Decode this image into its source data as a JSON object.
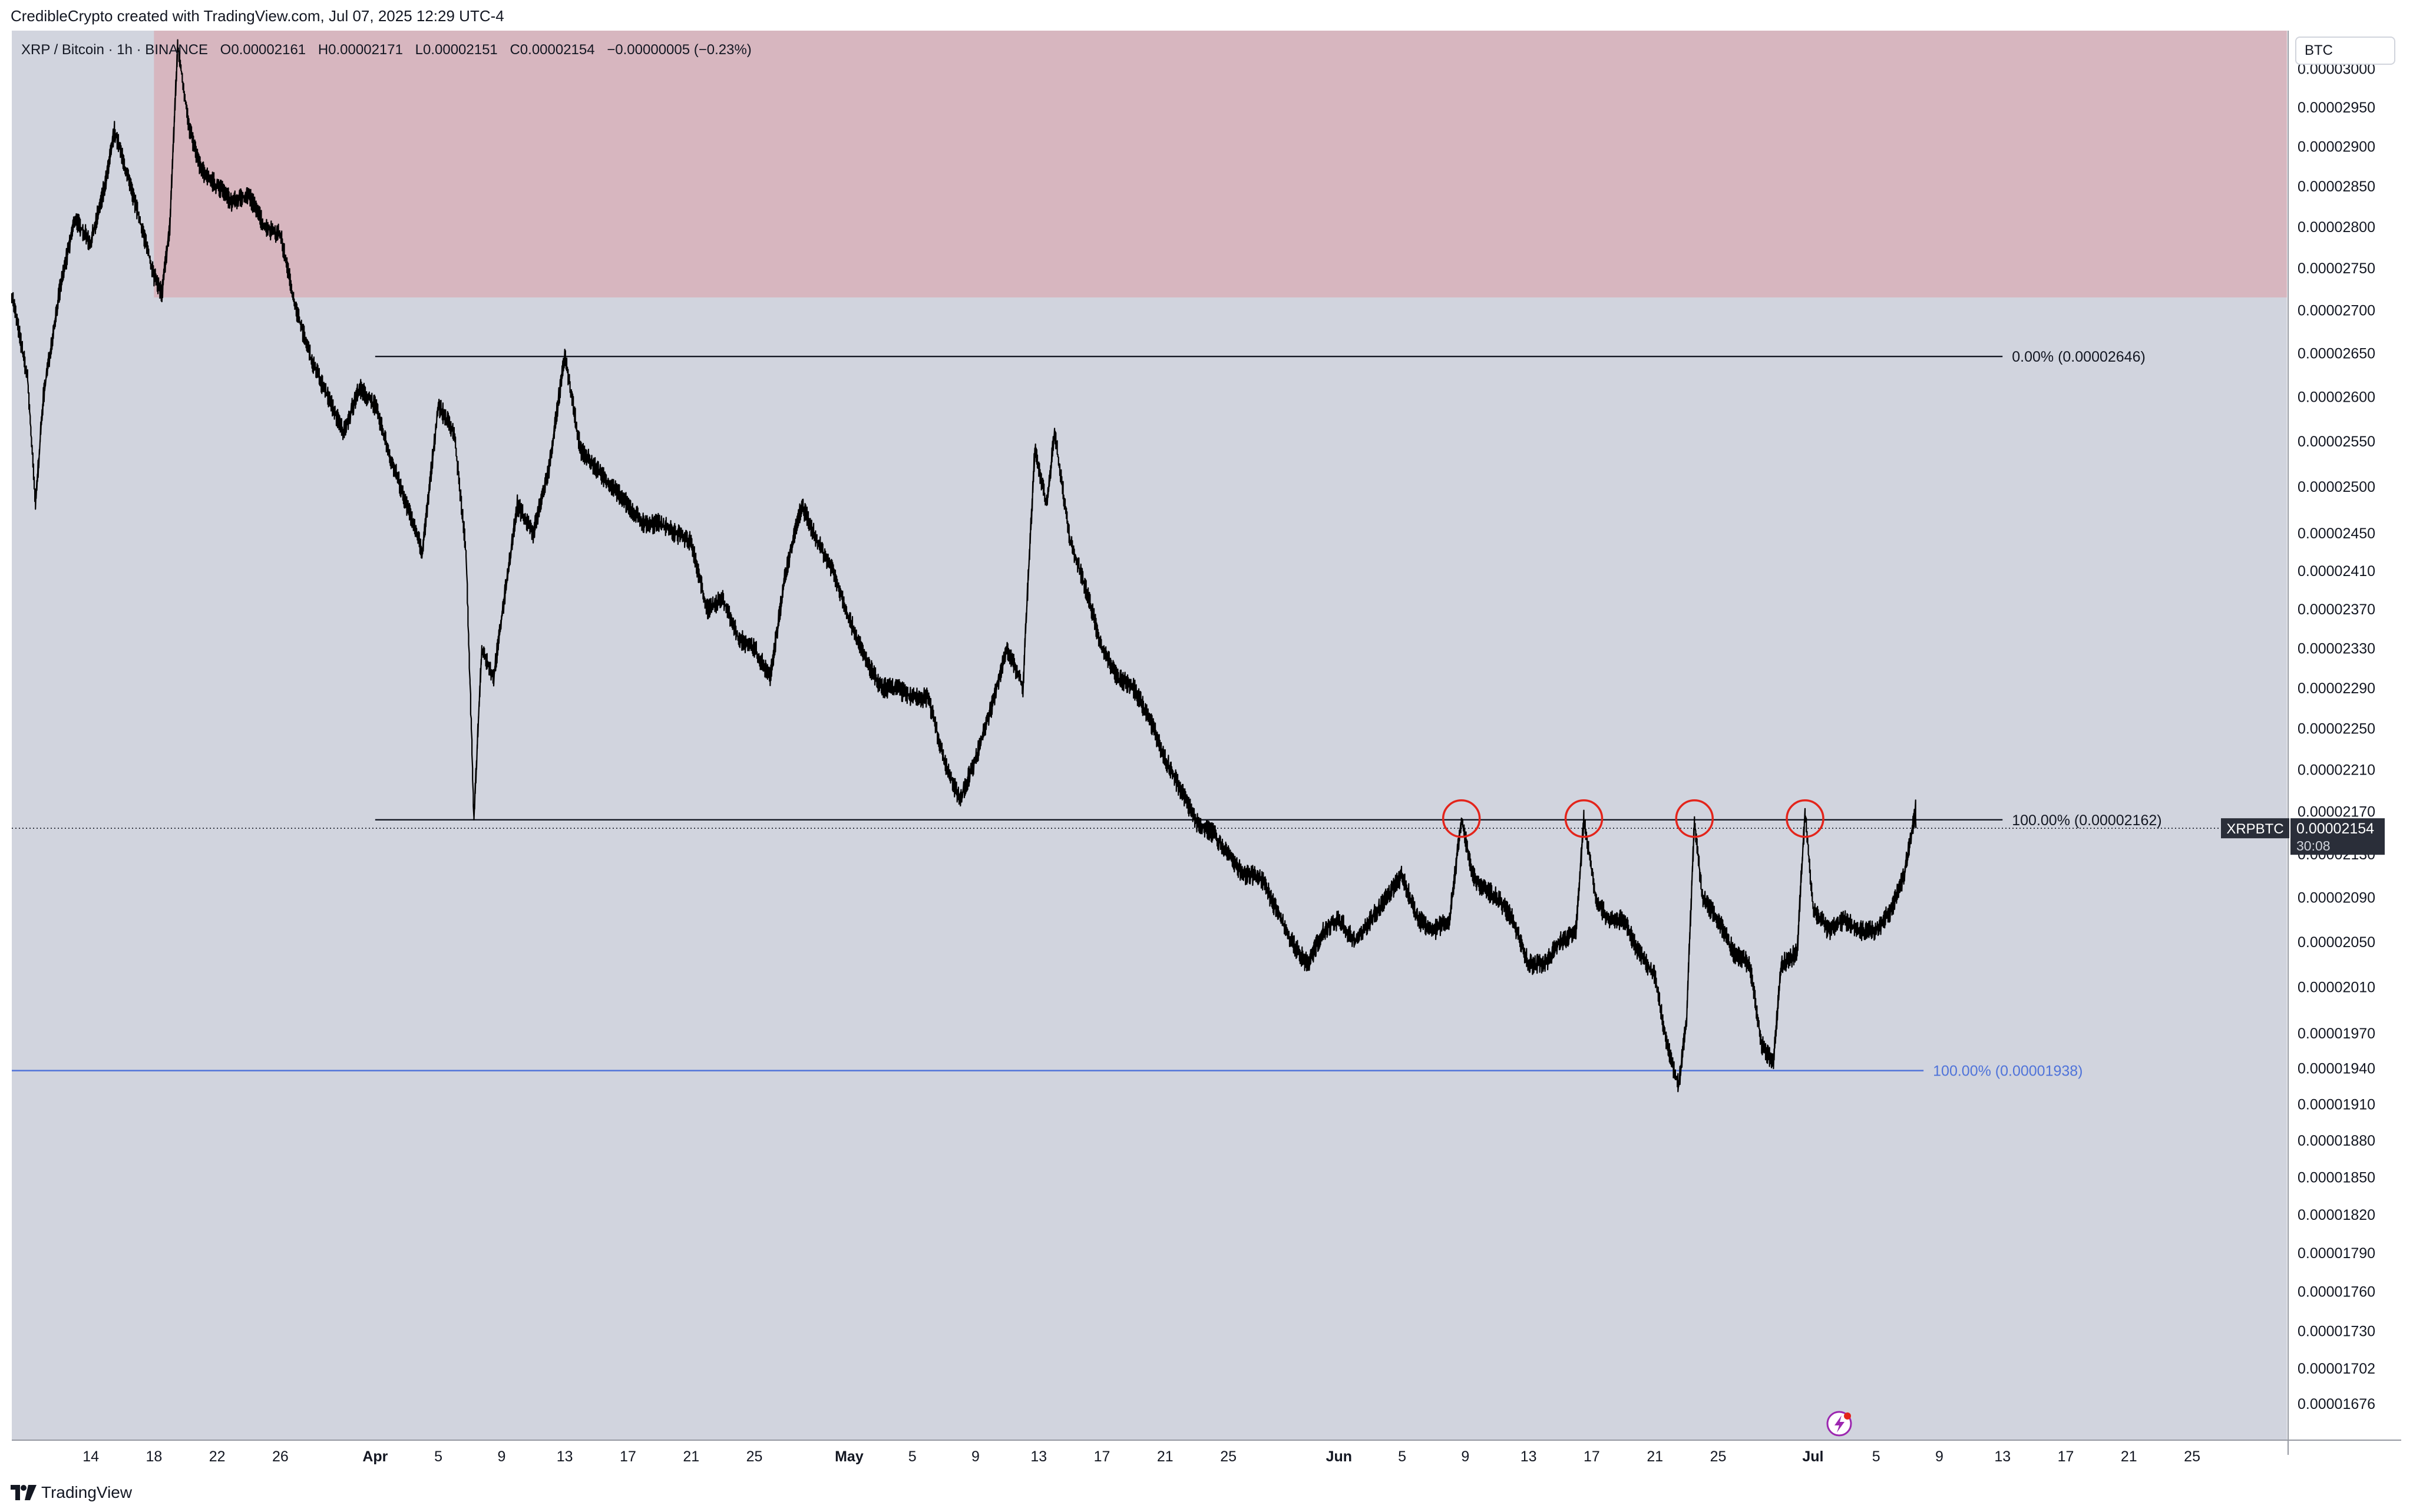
{
  "caption": "CredibleCrypto created with TradingView.com, Jul 07, 2025 12:29 UTC-4",
  "brand": "TradingView",
  "currency_label": "BTC",
  "legend": {
    "symbol": "XRP / Bitcoin · 1h · BINANCE",
    "o_label": "O",
    "o_value": "0.00002161",
    "h_label": "H",
    "h_value": "0.00002171",
    "l_label": "L",
    "l_value": "0.00002151",
    "c_label": "C",
    "c_value": "0.00002154",
    "change": "−0.00000005 (−0.23%)"
  },
  "last_price": {
    "ticker": "XRPBTC",
    "value": "0.00002154",
    "countdown": "30:08"
  },
  "colors": {
    "background": "#d1d4de",
    "supply_zone": "#d7b6bf",
    "candles": "#000000",
    "fib_line": "#131722",
    "blue_fib": "#4f73d9",
    "circles": "#e3241b"
  },
  "chart_data": {
    "type": "line",
    "series_type": "candlestick (1h)",
    "x_unit": "date (2025)",
    "y_unit": "BTC",
    "y_scale": "log",
    "y_range": [
      1.65e-05,
      3.05e-05
    ],
    "y_ticks": [
      {
        "value": 3e-05,
        "label": "0.00003000"
      },
      {
        "value": 2.95e-05,
        "label": "0.00002950"
      },
      {
        "value": 2.9e-05,
        "label": "0.00002900"
      },
      {
        "value": 2.85e-05,
        "label": "0.00002850"
      },
      {
        "value": 2.8e-05,
        "label": "0.00002800"
      },
      {
        "value": 2.75e-05,
        "label": "0.00002750"
      },
      {
        "value": 2.7e-05,
        "label": "0.00002700"
      },
      {
        "value": 2.65e-05,
        "label": "0.00002650"
      },
      {
        "value": 2.6e-05,
        "label": "0.00002600"
      },
      {
        "value": 2.55e-05,
        "label": "0.00002550"
      },
      {
        "value": 2.5e-05,
        "label": "0.00002500"
      },
      {
        "value": 2.45e-05,
        "label": "0.00002450"
      },
      {
        "value": 2.41e-05,
        "label": "0.00002410"
      },
      {
        "value": 2.37e-05,
        "label": "0.00002370"
      },
      {
        "value": 2.33e-05,
        "label": "0.00002330"
      },
      {
        "value": 2.29e-05,
        "label": "0.00002290"
      },
      {
        "value": 2.25e-05,
        "label": "0.00002250"
      },
      {
        "value": 2.21e-05,
        "label": "0.00002210"
      },
      {
        "value": 2.17e-05,
        "label": "0.00002170"
      },
      {
        "value": 2.13e-05,
        "label": "0.00002130"
      },
      {
        "value": 2.09e-05,
        "label": "0.00002090"
      },
      {
        "value": 2.05e-05,
        "label": "0.00002050"
      },
      {
        "value": 2.01e-05,
        "label": "0.00002010"
      },
      {
        "value": 1.97e-05,
        "label": "0.00001970"
      },
      {
        "value": 1.94e-05,
        "label": "0.00001940"
      },
      {
        "value": 1.91e-05,
        "label": "0.00001910"
      },
      {
        "value": 1.88e-05,
        "label": "0.00001880"
      },
      {
        "value": 1.85e-05,
        "label": "0.00001850"
      },
      {
        "value": 1.82e-05,
        "label": "0.00001820"
      },
      {
        "value": 1.79e-05,
        "label": "0.00001790"
      },
      {
        "value": 1.76e-05,
        "label": "0.00001760"
      },
      {
        "value": 1.73e-05,
        "label": "0.00001730"
      },
      {
        "value": 1.702e-05,
        "label": "0.00001702"
      },
      {
        "value": 1.676e-05,
        "label": "0.00001676"
      }
    ],
    "x_range": [
      "2025-03-09",
      "2025-07-31"
    ],
    "x_ticks": [
      {
        "date": "2025-03-14",
        "label": "14"
      },
      {
        "date": "2025-03-18",
        "label": "18"
      },
      {
        "date": "2025-03-22",
        "label": "22"
      },
      {
        "date": "2025-03-26",
        "label": "26"
      },
      {
        "date": "2025-04-01",
        "label": "Apr",
        "bold": true
      },
      {
        "date": "2025-04-05",
        "label": "5"
      },
      {
        "date": "2025-04-09",
        "label": "9"
      },
      {
        "date": "2025-04-13",
        "label": "13"
      },
      {
        "date": "2025-04-17",
        "label": "17"
      },
      {
        "date": "2025-04-21",
        "label": "21"
      },
      {
        "date": "2025-04-25",
        "label": "25"
      },
      {
        "date": "2025-05-01",
        "label": "May",
        "bold": true
      },
      {
        "date": "2025-05-05",
        "label": "5"
      },
      {
        "date": "2025-05-09",
        "label": "9"
      },
      {
        "date": "2025-05-13",
        "label": "13"
      },
      {
        "date": "2025-05-17",
        "label": "17"
      },
      {
        "date": "2025-05-21",
        "label": "21"
      },
      {
        "date": "2025-05-25",
        "label": "25"
      },
      {
        "date": "2025-06-01",
        "label": "Jun",
        "bold": true
      },
      {
        "date": "2025-06-05",
        "label": "5"
      },
      {
        "date": "2025-06-09",
        "label": "9"
      },
      {
        "date": "2025-06-13",
        "label": "13"
      },
      {
        "date": "2025-06-17",
        "label": "17"
      },
      {
        "date": "2025-06-21",
        "label": "21"
      },
      {
        "date": "2025-06-25",
        "label": "25"
      },
      {
        "date": "2025-07-01",
        "label": "Jul",
        "bold": true
      },
      {
        "date": "2025-07-05",
        "label": "5"
      },
      {
        "date": "2025-07-09",
        "label": "9"
      },
      {
        "date": "2025-07-13",
        "label": "13"
      },
      {
        "date": "2025-07-17",
        "label": "17"
      },
      {
        "date": "2025-07-21",
        "label": "21"
      },
      {
        "date": "2025-07-25",
        "label": "25"
      }
    ],
    "price_path": [
      [
        "2025-03-09T00:00",
        2.72e-05
      ],
      [
        "2025-03-10T00:00",
        2.62e-05
      ],
      [
        "2025-03-10T12:00",
        2.48e-05
      ],
      [
        "2025-03-11T00:00",
        2.6e-05
      ],
      [
        "2025-03-12T00:00",
        2.72e-05
      ],
      [
        "2025-03-13T00:00",
        2.81e-05
      ],
      [
        "2025-03-14T00:00",
        2.78e-05
      ],
      [
        "2025-03-15T00:00",
        2.86e-05
      ],
      [
        "2025-03-15T12:00",
        2.92e-05
      ],
      [
        "2025-03-16T12:00",
        2.85e-05
      ],
      [
        "2025-03-17T12:00",
        2.78e-05
      ],
      [
        "2025-03-18T00:00",
        2.74e-05
      ],
      [
        "2025-03-18T12:00",
        2.72e-05
      ],
      [
        "2025-03-19T00:00",
        2.8e-05
      ],
      [
        "2025-03-19T12:00",
        3.03e-05
      ],
      [
        "2025-03-20T06:00",
        2.92e-05
      ],
      [
        "2025-03-21T00:00",
        2.87e-05
      ],
      [
        "2025-03-22T00:00",
        2.85e-05
      ],
      [
        "2025-03-23T00:00",
        2.83e-05
      ],
      [
        "2025-03-24T00:00",
        2.84e-05
      ],
      [
        "2025-03-25T00:00",
        2.8e-05
      ],
      [
        "2025-03-26T00:00",
        2.79e-05
      ],
      [
        "2025-03-27T00:00",
        2.7e-05
      ],
      [
        "2025-03-28T00:00",
        2.64e-05
      ],
      [
        "2025-03-29T00:00",
        2.6e-05
      ],
      [
        "2025-03-30T00:00",
        2.56e-05
      ],
      [
        "2025-03-31T00:00",
        2.61e-05
      ],
      [
        "2025-04-01T00:00",
        2.59e-05
      ],
      [
        "2025-04-02T00:00",
        2.53e-05
      ],
      [
        "2025-04-03T00:00",
        2.48e-05
      ],
      [
        "2025-04-04T00:00",
        2.43e-05
      ],
      [
        "2025-04-05T00:00",
        2.59e-05
      ],
      [
        "2025-04-06T00:00",
        2.56e-05
      ],
      [
        "2025-04-06T18:00",
        2.43e-05
      ],
      [
        "2025-04-07T06:00",
        2.162e-05
      ],
      [
        "2025-04-07T18:00",
        2.33e-05
      ],
      [
        "2025-04-08T12:00",
        2.3e-05
      ],
      [
        "2025-04-09T12:00",
        2.42e-05
      ],
      [
        "2025-04-10T00:00",
        2.48e-05
      ],
      [
        "2025-04-11T00:00",
        2.45e-05
      ],
      [
        "2025-04-12T00:00",
        2.52e-05
      ],
      [
        "2025-04-13T00:00",
        2.646e-05
      ],
      [
        "2025-04-14T00:00",
        2.54e-05
      ],
      [
        "2025-04-15T00:00",
        2.52e-05
      ],
      [
        "2025-04-16T00:00",
        2.5e-05
      ],
      [
        "2025-04-17T00:00",
        2.48e-05
      ],
      [
        "2025-04-18T00:00",
        2.46e-05
      ],
      [
        "2025-04-19T00:00",
        2.46e-05
      ],
      [
        "2025-04-20T00:00",
        2.45e-05
      ],
      [
        "2025-04-21T00:00",
        2.44e-05
      ],
      [
        "2025-04-22T00:00",
        2.37e-05
      ],
      [
        "2025-04-23T00:00",
        2.38e-05
      ],
      [
        "2025-04-24T00:00",
        2.34e-05
      ],
      [
        "2025-04-25T00:00",
        2.33e-05
      ],
      [
        "2025-04-26T00:00",
        2.3e-05
      ],
      [
        "2025-04-27T00:00",
        2.41e-05
      ],
      [
        "2025-04-28T00:00",
        2.48e-05
      ],
      [
        "2025-04-29T00:00",
        2.44e-05
      ],
      [
        "2025-04-30T00:00",
        2.41e-05
      ],
      [
        "2025-05-01T00:00",
        2.36e-05
      ],
      [
        "2025-05-02T00:00",
        2.32e-05
      ],
      [
        "2025-05-03T00:00",
        2.29e-05
      ],
      [
        "2025-05-04T00:00",
        2.29e-05
      ],
      [
        "2025-05-05T00:00",
        2.28e-05
      ],
      [
        "2025-05-06T00:00",
        2.28e-05
      ],
      [
        "2025-05-07T00:00",
        2.22e-05
      ],
      [
        "2025-05-08T00:00",
        2.18e-05
      ],
      [
        "2025-05-09T00:00",
        2.22e-05
      ],
      [
        "2025-05-10T00:00",
        2.27e-05
      ],
      [
        "2025-05-11T00:00",
        2.33e-05
      ],
      [
        "2025-05-12T00:00",
        2.29e-05
      ],
      [
        "2025-05-12T18:00",
        2.54e-05
      ],
      [
        "2025-05-13T12:00",
        2.48e-05
      ],
      [
        "2025-05-14T00:00",
        2.56e-05
      ],
      [
        "2025-05-15T00:00",
        2.44e-05
      ],
      [
        "2025-05-16T00:00",
        2.39e-05
      ],
      [
        "2025-05-17T00:00",
        2.33e-05
      ],
      [
        "2025-05-18T00:00",
        2.3e-05
      ],
      [
        "2025-05-19T00:00",
        2.29e-05
      ],
      [
        "2025-05-20T00:00",
        2.26e-05
      ],
      [
        "2025-05-21T00:00",
        2.22e-05
      ],
      [
        "2025-05-22T00:00",
        2.19e-05
      ],
      [
        "2025-05-23T00:00",
        2.16e-05
      ],
      [
        "2025-05-24T00:00",
        2.15e-05
      ],
      [
        "2025-05-25T00:00",
        2.13e-05
      ],
      [
        "2025-05-26T00:00",
        2.11e-05
      ],
      [
        "2025-05-27T00:00",
        2.11e-05
      ],
      [
        "2025-05-28T00:00",
        2.08e-05
      ],
      [
        "2025-05-29T00:00",
        2.05e-05
      ],
      [
        "2025-05-30T00:00",
        2.03e-05
      ],
      [
        "2025-05-31T00:00",
        2.06e-05
      ],
      [
        "2025-06-01T00:00",
        2.07e-05
      ],
      [
        "2025-06-02T00:00",
        2.05e-05
      ],
      [
        "2025-06-03T00:00",
        2.07e-05
      ],
      [
        "2025-06-04T00:00",
        2.09e-05
      ],
      [
        "2025-06-05T00:00",
        2.11e-05
      ],
      [
        "2025-06-06T00:00",
        2.07e-05
      ],
      [
        "2025-06-07T00:00",
        2.06e-05
      ],
      [
        "2025-06-08T00:00",
        2.07e-05
      ],
      [
        "2025-06-08T18:00",
        2.162e-05
      ],
      [
        "2025-06-09T12:00",
        2.11e-05
      ],
      [
        "2025-06-10T00:00",
        2.1e-05
      ],
      [
        "2025-06-11T00:00",
        2.09e-05
      ],
      [
        "2025-06-12T00:00",
        2.07e-05
      ],
      [
        "2025-06-13T00:00",
        2.03e-05
      ],
      [
        "2025-06-14T00:00",
        2.03e-05
      ],
      [
        "2025-06-15T00:00",
        2.05e-05
      ],
      [
        "2025-06-16T00:00",
        2.06e-05
      ],
      [
        "2025-06-16T12:00",
        2.162e-05
      ],
      [
        "2025-06-17T06:00",
        2.09e-05
      ],
      [
        "2025-06-18T00:00",
        2.07e-05
      ],
      [
        "2025-06-19T00:00",
        2.07e-05
      ],
      [
        "2025-06-20T00:00",
        2.04e-05
      ],
      [
        "2025-06-21T00:00",
        2.02e-05
      ],
      [
        "2025-06-21T18:00",
        1.96e-05
      ],
      [
        "2025-06-22T12:00",
        1.925e-05
      ],
      [
        "2025-06-23T00:00",
        1.98e-05
      ],
      [
        "2025-06-23T12:00",
        2.162e-05
      ],
      [
        "2025-06-24T00:00",
        2.09e-05
      ],
      [
        "2025-06-25T00:00",
        2.07e-05
      ],
      [
        "2025-06-26T00:00",
        2.04e-05
      ],
      [
        "2025-06-27T00:00",
        2.03e-05
      ],
      [
        "2025-06-27T18:00",
        1.96e-05
      ],
      [
        "2025-06-28T12:00",
        1.945e-05
      ],
      [
        "2025-06-29T00:00",
        2.03e-05
      ],
      [
        "2025-06-30T00:00",
        2.04e-05
      ],
      [
        "2025-06-30T12:00",
        2.17e-05
      ],
      [
        "2025-07-01T00:00",
        2.08e-05
      ],
      [
        "2025-07-02T00:00",
        2.06e-05
      ],
      [
        "2025-07-03T00:00",
        2.07e-05
      ],
      [
        "2025-07-04T00:00",
        2.06e-05
      ],
      [
        "2025-07-05T00:00",
        2.06e-05
      ],
      [
        "2025-07-06T00:00",
        2.08e-05
      ],
      [
        "2025-07-06T18:00",
        2.11e-05
      ],
      [
        "2025-07-07T06:00",
        2.15e-05
      ],
      [
        "2025-07-07T12:00",
        2.171e-05
      ],
      [
        "2025-07-07T12:29",
        2.154e-05
      ]
    ],
    "supply_zone": {
      "start": "2025-03-18T00:00",
      "end": "2025-07-31T00:00",
      "low": 2.715e-05,
      "high": 3.05e-05
    },
    "fib_levels": [
      {
        "label": "0.00% (0.00002646)",
        "value": 2.646e-05,
        "start": "2025-04-01T00:00",
        "end": "2025-07-13T00:00",
        "kind": "black"
      },
      {
        "label": "100.00% (0.00002162)",
        "value": 2.162e-05,
        "start": "2025-04-01T00:00",
        "end": "2025-07-13T00:00",
        "kind": "black"
      },
      {
        "label": "100.00% (0.00001938)",
        "value": 1.938e-05,
        "start": "2025-03-09T00:00",
        "end": "2025-07-08T00:00",
        "kind": "blue"
      }
    ],
    "touch_circles": [
      {
        "date": "2025-06-08T18:00",
        "value": 2.162e-05
      },
      {
        "date": "2025-06-16T12:00",
        "value": 2.162e-05
      },
      {
        "date": "2025-06-23T12:00",
        "value": 2.162e-05
      },
      {
        "date": "2025-06-30T12:00",
        "value": 2.162e-05
      }
    ]
  }
}
